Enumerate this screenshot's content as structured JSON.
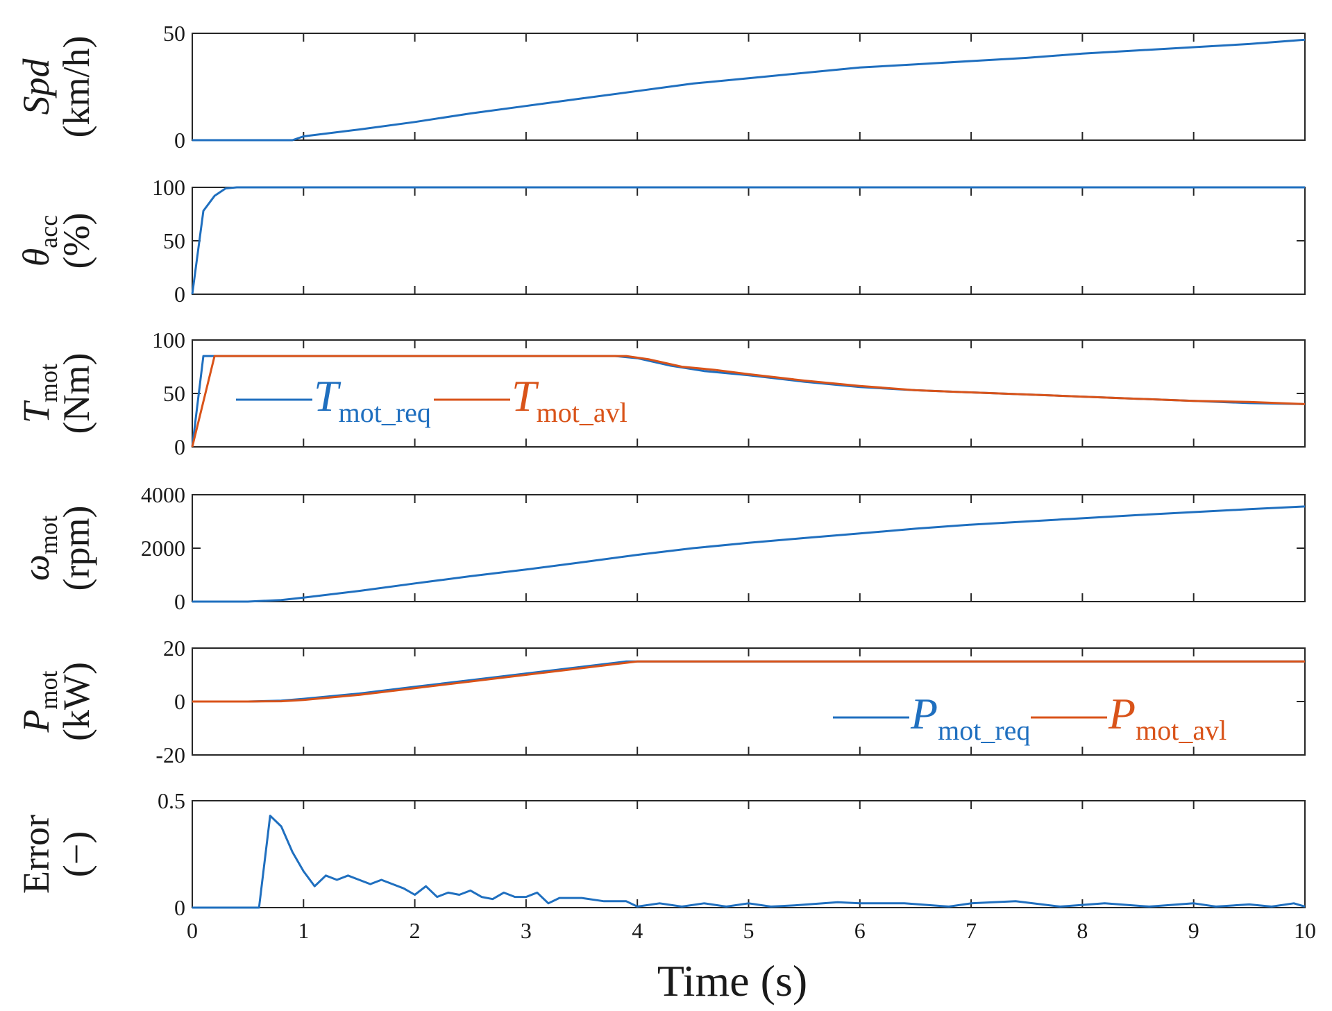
{
  "colors": {
    "blue": "#1f6fbf",
    "orange": "#d95319",
    "axis": "#262626"
  },
  "xlabel": "Time (s)",
  "xticks": [
    "0",
    "1",
    "2",
    "3",
    "4",
    "5",
    "6",
    "7",
    "8",
    "9",
    "10"
  ],
  "chart_data": [
    {
      "type": "line",
      "ylabel": {
        "main": "Spd",
        "sub": "",
        "unit": "(km/h)",
        "italic": true
      },
      "ylim": [
        0,
        50
      ],
      "xlim": [
        0,
        10
      ],
      "yticks": [
        "0",
        "50"
      ],
      "series": [
        {
          "name": "Spd",
          "color": "blue",
          "x": [
            0,
            0.9,
            1.0,
            1.5,
            2.0,
            2.5,
            3.0,
            3.5,
            4.0,
            4.5,
            5.0,
            5.5,
            6.0,
            6.5,
            7.0,
            7.5,
            8.0,
            8.5,
            9.0,
            9.5,
            10.0
          ],
          "y": [
            0,
            0,
            1.8,
            5,
            8.5,
            12.5,
            16,
            19.5,
            23,
            26.5,
            29,
            31.5,
            34,
            35.5,
            37,
            38.5,
            40.5,
            42,
            43.5,
            45,
            47
          ]
        }
      ]
    },
    {
      "type": "line",
      "ylabel": {
        "main": "θ",
        "sub": "acc",
        "unit": "(%)",
        "italic": true
      },
      "ylim": [
        0,
        100
      ],
      "xlim": [
        0,
        10
      ],
      "yticks": [
        "0",
        "50",
        "100"
      ],
      "series": [
        {
          "name": "theta_acc",
          "color": "blue",
          "x": [
            0,
            0.1,
            0.2,
            0.3,
            0.4,
            10
          ],
          "y": [
            0,
            78,
            92,
            99,
            100,
            100
          ]
        }
      ]
    },
    {
      "type": "line",
      "ylabel": {
        "main": "T",
        "sub": "mot",
        "unit": "(Nm)",
        "italic": true
      },
      "ylim": [
        0,
        100
      ],
      "xlim": [
        0,
        10
      ],
      "yticks": [
        "0",
        "50",
        "100"
      ],
      "legend": {
        "position": "middle-left",
        "items": [
          {
            "main": "T",
            "sub": "mot_req",
            "color": "blue"
          },
          {
            "main": "T",
            "sub": "mot_avl",
            "color": "orange"
          }
        ]
      },
      "series": [
        {
          "name": "T_mot_req",
          "color": "blue",
          "x": [
            0,
            0.1,
            3.8,
            4.0,
            4.3,
            4.6,
            5.0,
            5.5,
            6.0,
            6.5,
            7.0,
            7.5,
            8.0,
            8.5,
            9.0,
            9.5,
            10.0
          ],
          "y": [
            0,
            85,
            85,
            83,
            76,
            71,
            67,
            61,
            56,
            53,
            51,
            49,
            47,
            45,
            43,
            41,
            40
          ]
        },
        {
          "name": "T_mot_avl",
          "color": "orange",
          "x": [
            0,
            0.2,
            3.9,
            4.1,
            4.4,
            4.7,
            5.0,
            5.5,
            6.0,
            6.5,
            7.0,
            7.5,
            8.0,
            8.5,
            9.0,
            9.5,
            10.0
          ],
          "y": [
            0,
            85,
            85,
            82,
            75,
            72,
            68,
            62,
            57,
            53,
            51,
            49,
            47,
            45,
            43,
            42,
            40
          ]
        }
      ]
    },
    {
      "type": "line",
      "ylabel": {
        "main": "ω",
        "sub": "mot",
        "unit": "(rpm)",
        "italic": true
      },
      "ylim": [
        0,
        4000
      ],
      "xlim": [
        0,
        10
      ],
      "yticks": [
        "0",
        "2000",
        "4000"
      ],
      "series": [
        {
          "name": "omega_mot",
          "color": "blue",
          "x": [
            0,
            0.5,
            0.8,
            1.0,
            1.5,
            2.0,
            2.5,
            3.0,
            3.5,
            4.0,
            4.5,
            5.0,
            5.5,
            6.0,
            6.5,
            7.0,
            7.5,
            8.0,
            8.5,
            9.0,
            9.5,
            10.0
          ],
          "y": [
            0,
            0,
            60,
            150,
            400,
            680,
            950,
            1200,
            1470,
            1750,
            2000,
            2200,
            2380,
            2550,
            2730,
            2880,
            3000,
            3120,
            3240,
            3350,
            3460,
            3560
          ]
        }
      ]
    },
    {
      "type": "line",
      "ylabel": {
        "main": "P",
        "sub": "mot",
        "unit": "(kW)",
        "italic": true
      },
      "ylim": [
        -20,
        20
      ],
      "xlim": [
        0,
        10
      ],
      "yticks": [
        "-20",
        "0",
        "20"
      ],
      "legend": {
        "position": "lower-right",
        "items": [
          {
            "main": "P",
            "sub": "mot_req",
            "color": "blue"
          },
          {
            "main": "P",
            "sub": "mot_avl",
            "color": "orange"
          }
        ]
      },
      "series": [
        {
          "name": "P_mot_req",
          "color": "blue",
          "x": [
            0,
            0.5,
            0.8,
            1.0,
            1.5,
            2.0,
            2.5,
            3.0,
            3.5,
            3.9,
            4.2,
            5.0,
            6.0,
            7.0,
            8.0,
            9.0,
            10.0
          ],
          "y": [
            0,
            0,
            0.3,
            1,
            3,
            5.5,
            8,
            10.5,
            13,
            15,
            15,
            15,
            15,
            15,
            15,
            15,
            15
          ]
        },
        {
          "name": "P_mot_avl",
          "color": "orange",
          "x": [
            0,
            0.5,
            0.8,
            1.0,
            1.5,
            2.0,
            2.5,
            3.0,
            3.5,
            4.0,
            4.3,
            5.0,
            6.0,
            7.0,
            8.0,
            9.0,
            10.0
          ],
          "y": [
            0,
            0,
            0.1,
            0.6,
            2.5,
            5,
            7.5,
            10,
            12.5,
            15,
            15,
            15,
            15,
            15,
            15,
            15,
            15
          ]
        }
      ]
    },
    {
      "type": "line",
      "ylabel": {
        "main": "Error",
        "sub": "",
        "unit": "(−)",
        "italic": false
      },
      "ylim": [
        0,
        0.5
      ],
      "xlim": [
        0,
        10
      ],
      "yticks": [
        "0",
        "0.5"
      ],
      "series": [
        {
          "name": "Error",
          "color": "blue",
          "x": [
            0,
            0.6,
            0.7,
            0.8,
            0.9,
            1.0,
            1.1,
            1.2,
            1.3,
            1.4,
            1.5,
            1.6,
            1.7,
            1.8,
            1.9,
            2.0,
            2.1,
            2.2,
            2.3,
            2.4,
            2.5,
            2.6,
            2.7,
            2.8,
            2.9,
            3.0,
            3.1,
            3.2,
            3.3,
            3.5,
            3.7,
            3.9,
            4.0,
            4.2,
            4.4,
            4.6,
            4.8,
            5.0,
            5.2,
            5.4,
            5.8,
            6.0,
            6.4,
            6.8,
            7.0,
            7.4,
            7.8,
            8.2,
            8.6,
            9.0,
            9.2,
            9.5,
            9.7,
            9.9,
            10.0
          ],
          "y": [
            0,
            0,
            0.43,
            0.38,
            0.26,
            0.17,
            0.1,
            0.15,
            0.13,
            0.15,
            0.13,
            0.11,
            0.13,
            0.11,
            0.09,
            0.06,
            0.1,
            0.05,
            0.07,
            0.06,
            0.08,
            0.05,
            0.04,
            0.07,
            0.05,
            0.05,
            0.07,
            0.02,
            0.045,
            0.045,
            0.03,
            0.03,
            0.005,
            0.02,
            0.005,
            0.02,
            0.005,
            0.02,
            0.005,
            0.01,
            0.025,
            0.02,
            0.02,
            0.005,
            0.02,
            0.03,
            0.005,
            0.02,
            0.005,
            0.02,
            0.005,
            0.015,
            0.005,
            0.02,
            0.005
          ]
        }
      ]
    }
  ]
}
